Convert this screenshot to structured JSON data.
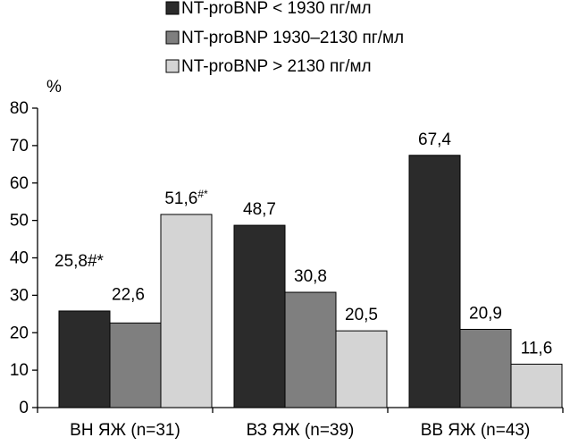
{
  "chart_data": {
    "type": "bar",
    "ylabel": "%",
    "ylim": [
      0,
      80
    ],
    "yticks": [
      "0",
      "10",
      "20",
      "30",
      "40",
      "50",
      "60",
      "70",
      "80"
    ],
    "categories": [
      "ВН ЯЖ (n=31)",
      "ВЗ ЯЖ (n=39)",
      "ВВ ЯЖ (n=43)"
    ],
    "legend_position": "top",
    "grid": false,
    "series": [
      {
        "name": "NT-proBNP < 1930 пг/мл",
        "color": "#2b2b2b",
        "values": [
          25.8,
          48.7,
          67.4
        ],
        "labels": [
          {
            "main": "25,8#*",
            "sup": ""
          },
          {
            "main": "48,7",
            "sup": ""
          },
          {
            "main": "67,4",
            "sup": ""
          }
        ]
      },
      {
        "name": "NT-proBNP 1930–2130 пг/мл",
        "color": "#7f7f7f",
        "values": [
          22.6,
          30.8,
          20.9
        ],
        "labels": [
          {
            "main": "22,6",
            "sup": ""
          },
          {
            "main": "30,8",
            "sup": ""
          },
          {
            "main": "20,9",
            "sup": ""
          }
        ]
      },
      {
        "name": "NT-proBNP > 2130 пг/мл",
        "color": "#d4d4d4",
        "values": [
          51.6,
          20.5,
          11.6
        ],
        "labels": [
          {
            "main": "51,6",
            "sup": "#*"
          },
          {
            "main": "20,5",
            "sup": ""
          },
          {
            "main": "11,6",
            "sup": ""
          }
        ]
      }
    ]
  }
}
